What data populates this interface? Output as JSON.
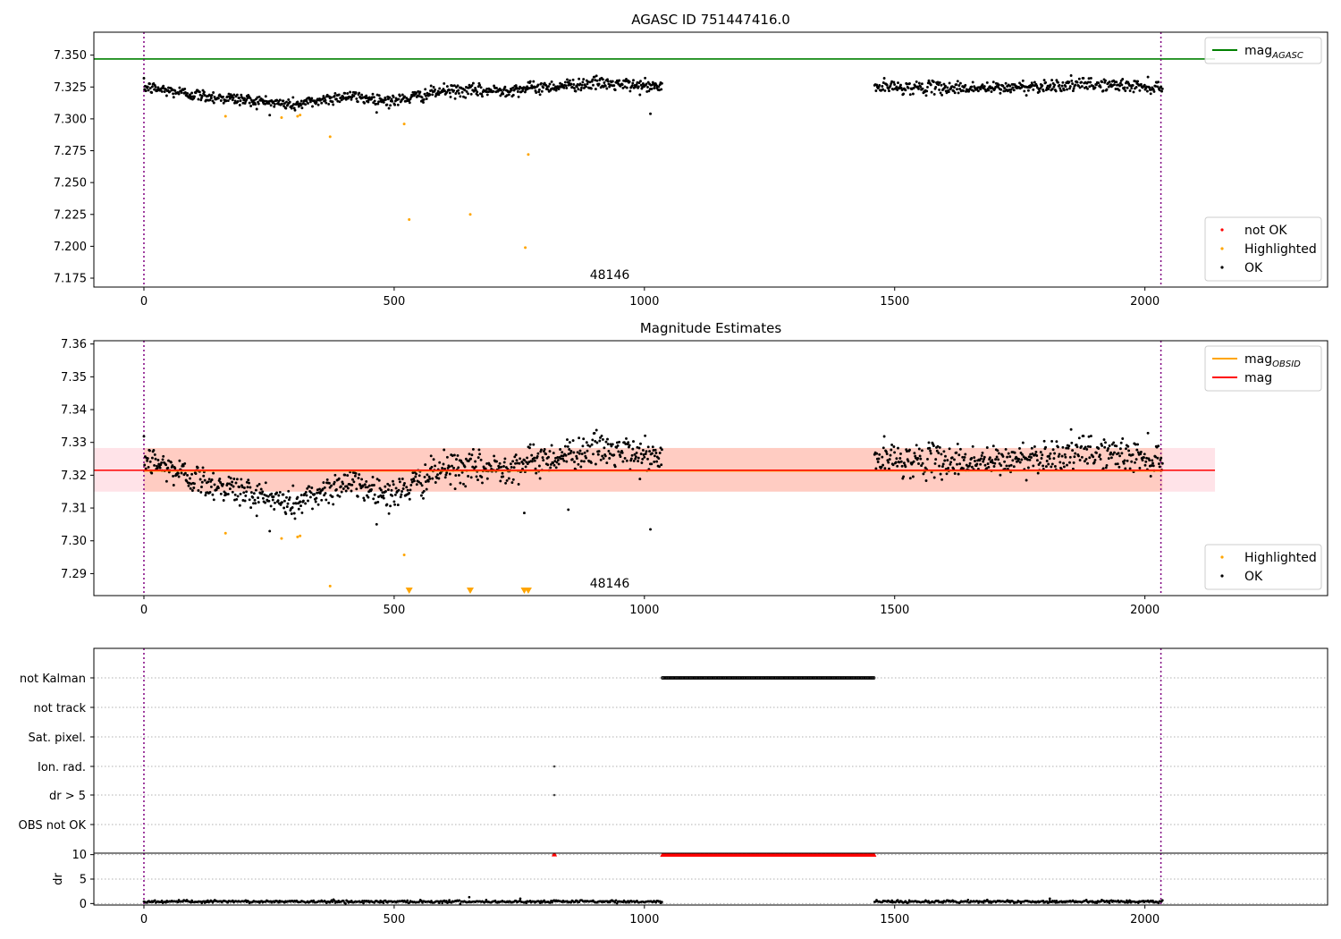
{
  "figure": {
    "background": "#ffffff"
  },
  "chart_data": [
    {
      "type": "scatter",
      "title": "AGASC ID 751447416.0",
      "xlim": [
        -100,
        2365
      ],
      "ylim": [
        7.168,
        7.368
      ],
      "x_ticks": [
        0,
        500,
        1000,
        1500,
        2000
      ],
      "y_ticks": [
        7.175,
        7.2,
        7.225,
        7.25,
        7.275,
        7.3,
        7.325,
        7.35
      ],
      "y_tick_labels": [
        "7.175",
        "7.200",
        "7.225",
        "7.250",
        "7.275",
        "7.300",
        "7.325",
        "7.350"
      ],
      "vlines": [
        0,
        2032
      ],
      "hlines": [
        {
          "name": "mag",
          "subscript": "AGASC",
          "y": 7.347,
          "x_end": 2140,
          "color": "#008000"
        }
      ],
      "annotation": {
        "text": "48146",
        "x": 1020
      },
      "legend_lines": [
        {
          "label": "mag",
          "subscript": "AGASC",
          "color": "#008000"
        }
      ],
      "legend_points": [
        {
          "label": "not OK",
          "color": "#ff0000"
        },
        {
          "label": "Highlighted",
          "color": "#ffa500"
        },
        {
          "label": "OK",
          "color": "#000000"
        }
      ],
      "series": [
        {
          "name": "OK",
          "color": "#000000",
          "segments": [
            {
              "x_start": 0,
              "x_end": 1035,
              "n": 800,
              "baseline": [
                [
                  0,
                  7.325
                ],
                [
                  120,
                  7.318
                ],
                [
                  200,
                  7.315
                ],
                [
                  300,
                  7.311
                ],
                [
                  400,
                  7.318
                ],
                [
                  500,
                  7.314
                ],
                [
                  600,
                  7.322
                ],
                [
                  700,
                  7.322
                ],
                [
                  800,
                  7.325
                ],
                [
                  900,
                  7.328
                ],
                [
                  1035,
                  7.325
                ]
              ],
              "spread": 0.0045
            },
            {
              "x_start": 1460,
              "x_end": 2035,
              "n": 420,
              "baseline": [
                [
                  1460,
                  7.325
                ],
                [
                  1700,
                  7.324
                ],
                [
                  1800,
                  7.326
                ],
                [
                  1900,
                  7.327
                ],
                [
                  2035,
                  7.325
                ]
              ],
              "spread": 0.0045
            }
          ],
          "extra": [
            [
              1012,
              7.304
            ]
          ]
        },
        {
          "name": "Highlighted",
          "color": "#ffa500",
          "points": [
            [
              163,
              7.302
            ],
            [
              275,
              7.301
            ],
            [
              307,
              7.302
            ],
            [
              312,
              7.303
            ],
            [
              372,
              7.286
            ],
            [
              520,
              7.296
            ],
            [
              530,
              7.221
            ],
            [
              652,
              7.225
            ],
            [
              762,
              7.199
            ],
            [
              768,
              7.272
            ]
          ]
        }
      ]
    },
    {
      "type": "scatter",
      "title": "Magnitude Estimates",
      "xlim": [
        -100,
        2365
      ],
      "ylim": [
        7.2833,
        7.361
      ],
      "x_ticks": [
        0,
        500,
        1000,
        1500,
        2000
      ],
      "y_ticks": [
        7.29,
        7.3,
        7.31,
        7.32,
        7.33,
        7.34,
        7.35,
        7.36
      ],
      "y_tick_labels": [
        "7.29",
        "7.30",
        "7.31",
        "7.32",
        "7.33",
        "7.34",
        "7.35",
        "7.36"
      ],
      "vlines": [
        0,
        2032
      ],
      "bands": [
        {
          "x_start": -100,
          "x_end": 2140,
          "y_low": 7.315,
          "y_high": 7.3283,
          "color": "#ffc0cb",
          "opacity": 0.45
        },
        {
          "x_start": 0,
          "x_end": 2035,
          "y_low": 7.315,
          "y_high": 7.3283,
          "color": "#ffa07a",
          "opacity": 0.35
        }
      ],
      "hlines": [
        {
          "name": "mag",
          "subscript": "OBSID",
          "y": 7.3214,
          "x_start": 0,
          "x_end": 2035,
          "color": "#ffa500"
        },
        {
          "name": "mag",
          "y": 7.3215,
          "x_start": -100,
          "x_end": 2140,
          "color": "#ff0000"
        }
      ],
      "annotation": {
        "text": "48146",
        "x": 1020
      },
      "legend_lines": [
        {
          "label": "mag",
          "subscript": "OBSID",
          "color": "#ffa500"
        },
        {
          "label": "mag",
          "subscript": "",
          "color": "#ff0000"
        }
      ],
      "legend_points": [
        {
          "label": "Highlighted",
          "color": "#ffa500"
        },
        {
          "label": "OK",
          "color": "#000000"
        }
      ],
      "series": [
        {
          "name": "OK",
          "color": "#000000",
          "segments": [
            {
              "x_start": 0,
              "x_end": 1035,
              "n": 800,
              "baseline": [
                [
                  0,
                  7.325
                ],
                [
                  120,
                  7.318
                ],
                [
                  200,
                  7.315
                ],
                [
                  300,
                  7.311
                ],
                [
                  400,
                  7.318
                ],
                [
                  500,
                  7.314
                ],
                [
                  600,
                  7.322
                ],
                [
                  700,
                  7.322
                ],
                [
                  800,
                  7.325
                ],
                [
                  900,
                  7.328
                ],
                [
                  1035,
                  7.325
                ]
              ],
              "spread": 0.0045
            },
            {
              "x_start": 1460,
              "x_end": 2035,
              "n": 420,
              "baseline": [
                [
                  1460,
                  7.325
                ],
                [
                  1700,
                  7.324
                ],
                [
                  1800,
                  7.326
                ],
                [
                  1900,
                  7.327
                ],
                [
                  2035,
                  7.325
                ]
              ],
              "spread": 0.0045
            }
          ],
          "extra": [
            [
              1012,
              7.3035
            ],
            [
              760,
              7.3085
            ],
            [
              848,
              7.3095
            ]
          ]
        },
        {
          "name": "Highlighted",
          "color": "#ffa500",
          "points": [
            [
              163,
              7.3023
            ],
            [
              275,
              7.3007
            ],
            [
              307,
              7.3012
            ],
            [
              312,
              7.3015
            ],
            [
              372,
              7.2862
            ],
            [
              520,
              7.2957
            ]
          ]
        },
        {
          "name": "Highlighted",
          "color": "#ffa500",
          "marker": "triangle-down",
          "points": [
            [
              530,
              7.2838
            ],
            [
              652,
              7.2838
            ],
            [
              760,
              7.2838
            ],
            [
              768,
              7.2838
            ]
          ]
        }
      ]
    },
    {
      "type": "scatter",
      "title": "",
      "xlim": [
        -100,
        2365
      ],
      "categories": [
        "not Kalman",
        "not track",
        "Sat. pixel.",
        "Ion. rad.",
        "dr > 5",
        "OBS not OK"
      ],
      "vlines": [
        0,
        2032
      ],
      "flags": [
        {
          "category": "not Kalman",
          "x_start": 1036,
          "x_end": 1460
        },
        {
          "category": "Ion. rad.",
          "x": 820
        },
        {
          "category": "dr > 5",
          "x": 820
        }
      ]
    },
    {
      "type": "scatter",
      "title": "",
      "ylabel": "dr",
      "xlim": [
        -100,
        2365
      ],
      "ylim": [
        -0.3,
        10.3
      ],
      "x_ticks": [
        0,
        500,
        1000,
        1500,
        2000
      ],
      "y_ticks": [
        0,
        5,
        10
      ],
      "y_tick_labels": [
        "0",
        "5",
        "10"
      ],
      "vlines": [
        0,
        2032
      ],
      "series": [
        {
          "name": "dr",
          "color": "#000000",
          "segments": [
            {
              "x_start": 0,
              "x_end": 1035,
              "n": 520,
              "baseline": [
                [
                  0,
                  0.4
                ],
                [
                  1035,
                  0.4
                ]
              ],
              "spread": 0.25
            },
            {
              "x_start": 1460,
              "x_end": 2035,
              "n": 300,
              "baseline": [
                [
                  1460,
                  0.4
                ],
                [
                  2035,
                  0.4
                ]
              ],
              "spread": 0.25
            }
          ],
          "extra": [
            [
              650,
              1.3
            ],
            [
              752,
              1.0
            ],
            [
              1810,
              1.0
            ]
          ]
        },
        {
          "name": "dr",
          "color": "#ff0000",
          "marker": "triangle-up",
          "range": {
            "x_start": 1036,
            "x_end": 1460,
            "y": 10,
            "step": 3
          },
          "points": [
            [
              820,
              10
            ]
          ]
        }
      ]
    }
  ]
}
